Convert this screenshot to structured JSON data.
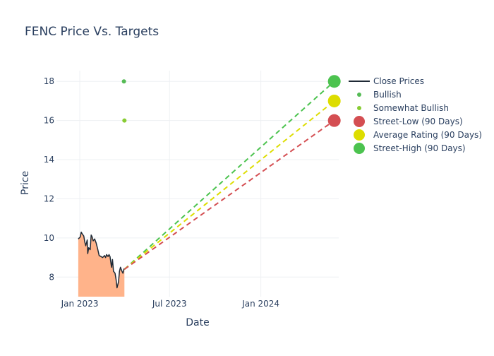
{
  "chart_data": {
    "type": "line",
    "title": "FENC Price Vs. Targets",
    "xlabel": "Date",
    "ylabel": "Price",
    "xlim": [
      "2022-11-15",
      "2024-06-06"
    ],
    "ylim": [
      7.0,
      18.55
    ],
    "grid": true,
    "legend_position": "right",
    "x_ticks": [
      {
        "date": "2023-01-01",
        "label": "Jan 2023"
      },
      {
        "date": "2023-07-01",
        "label": "Jul 2023"
      },
      {
        "date": "2024-01-01",
        "label": "Jan 2024"
      }
    ],
    "y_ticks": [
      8,
      10,
      12,
      14,
      16,
      18
    ],
    "close_prices": {
      "name": "Close Prices",
      "color": "#1f2a36",
      "fill_color": "#ffb38a",
      "points": [
        [
          "2022-12-29",
          9.95
        ],
        [
          "2023-01-02",
          10.05
        ],
        [
          "2023-01-04",
          10.3
        ],
        [
          "2023-01-06",
          10.2
        ],
        [
          "2023-01-09",
          10.1
        ],
        [
          "2023-01-11",
          9.8
        ],
        [
          "2023-01-13",
          9.6
        ],
        [
          "2023-01-16",
          9.9
        ],
        [
          "2023-01-17",
          9.2
        ],
        [
          "2023-01-19",
          9.5
        ],
        [
          "2023-01-22",
          9.4
        ],
        [
          "2023-01-24",
          10.15
        ],
        [
          "2023-01-26",
          10.05
        ],
        [
          "2023-01-28",
          9.85
        ],
        [
          "2023-01-31",
          9.95
        ],
        [
          "2023-02-03",
          9.75
        ],
        [
          "2023-02-06",
          9.45
        ],
        [
          "2023-02-09",
          9.1
        ],
        [
          "2023-02-13",
          9.05
        ],
        [
          "2023-02-16",
          9.0
        ],
        [
          "2023-02-20",
          9.1
        ],
        [
          "2023-02-22",
          9.0
        ],
        [
          "2023-02-24",
          9.15
        ],
        [
          "2023-02-27",
          9.05
        ],
        [
          "2023-03-01",
          9.15
        ],
        [
          "2023-03-03",
          9.05
        ],
        [
          "2023-03-06",
          8.5
        ],
        [
          "2023-03-08",
          8.9
        ],
        [
          "2023-03-10",
          8.3
        ],
        [
          "2023-03-13",
          8.2
        ],
        [
          "2023-03-15",
          7.9
        ],
        [
          "2023-03-17",
          7.45
        ],
        [
          "2023-03-20",
          7.75
        ],
        [
          "2023-03-22",
          8.3
        ],
        [
          "2023-03-24",
          8.5
        ],
        [
          "2023-03-27",
          8.3
        ],
        [
          "2023-03-29",
          8.2
        ],
        [
          "2023-03-31",
          8.4
        ],
        [
          "2023-04-01",
          8.45
        ]
      ]
    },
    "analyst_ratings": [
      {
        "name": "Bullish",
        "date": "2023-03-31",
        "value": 18.0,
        "color": "#55bb55"
      },
      {
        "name": "Somewhat Bullish",
        "date": "2023-04-01",
        "value": 16.0,
        "color": "#88cc33"
      }
    ],
    "targets": [
      {
        "name": "Street-Low (90 Days)",
        "start": [
          "2023-04-01",
          8.4
        ],
        "end": [
          "2024-05-28",
          16.0
        ],
        "color": "#d44e52"
      },
      {
        "name": "Average Rating (90 Days)",
        "start": [
          "2023-04-01",
          8.4
        ],
        "end": [
          "2024-05-28",
          17.0
        ],
        "color": "#dddd00"
      },
      {
        "name": "Street-High (90 Days)",
        "start": [
          "2023-04-01",
          8.4
        ],
        "end": [
          "2024-05-28",
          18.0
        ],
        "color": "#4cc34f"
      }
    ]
  }
}
